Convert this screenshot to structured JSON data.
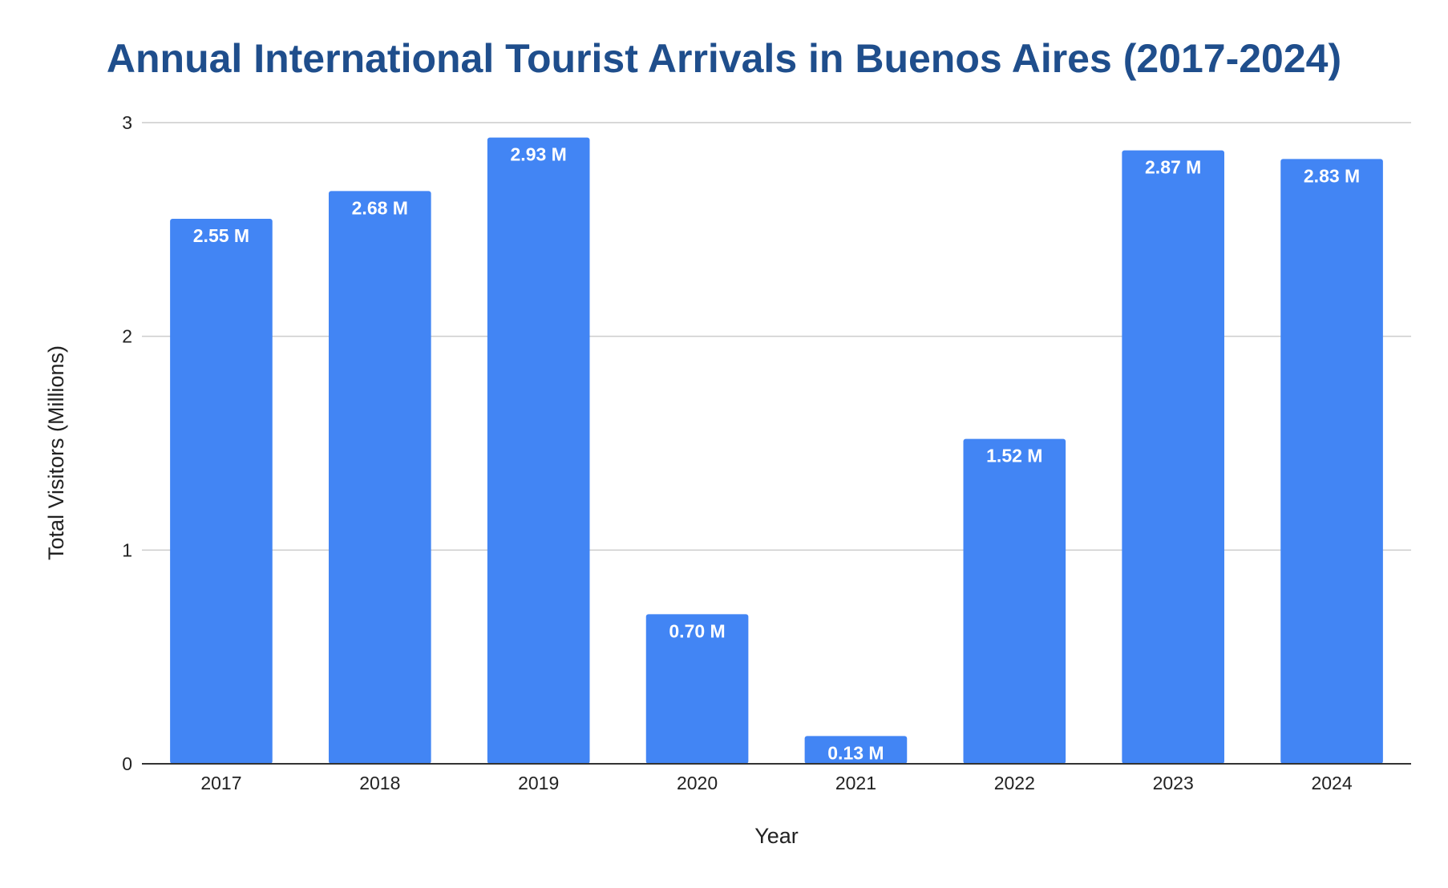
{
  "chart_data": {
    "type": "bar",
    "title": "Annual International Tourist Arrivals in Buenos Aires (2017-2024)",
    "xlabel": "Year",
    "ylabel": "Total Visitors (Millions)",
    "categories": [
      "2017",
      "2018",
      "2019",
      "2020",
      "2021",
      "2022",
      "2023",
      "2024"
    ],
    "values": [
      2.55,
      2.68,
      2.93,
      0.7,
      0.13,
      1.52,
      2.87,
      2.83
    ],
    "data_labels": [
      "2.55 M",
      "2.68 M",
      "2.93 M",
      "0.70 M",
      "0.13 M",
      "1.52 M",
      "2.87 M",
      "2.83 M"
    ],
    "ylim": [
      0,
      3
    ],
    "yticks": [
      "0",
      "1",
      "2",
      "3"
    ],
    "grid": true,
    "legend": "none",
    "colors": {
      "bar": "#4285f4",
      "title": "#1f4e8c",
      "gridline": "#cccccc",
      "axis": "#333333"
    }
  }
}
